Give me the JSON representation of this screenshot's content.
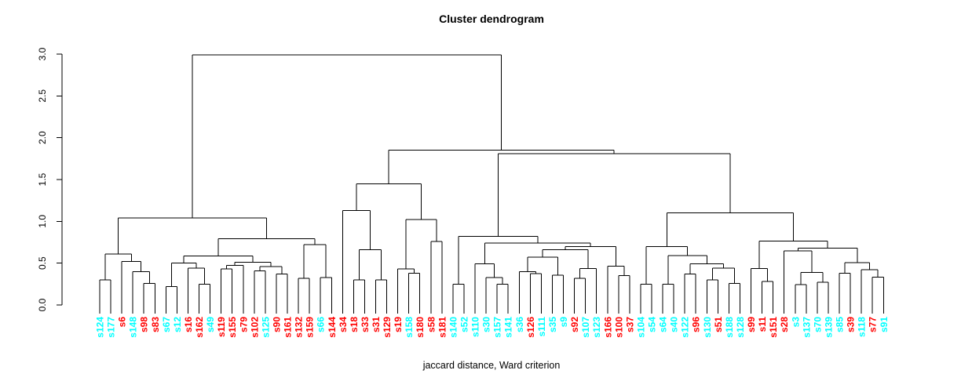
{
  "title": "Cluster dendrogram",
  "xlabel": "jaccard distance, Ward criterion",
  "chart_data": {
    "type": "dendrogram",
    "title": "Cluster dendrogram",
    "xlabel": "jaccard distance, Ward criterion",
    "ylabel": "",
    "ylim": [
      0.0,
      3.0
    ],
    "ytick_labels": [
      "0.0",
      "0.5",
      "1.0",
      "1.5",
      "2.0",
      "2.5",
      "3.0"
    ],
    "yticks": [
      0.0,
      0.5,
      1.0,
      1.5,
      2.0,
      2.5,
      3.0
    ],
    "grid": false,
    "line_color": "#000000",
    "label_colors": {
      "red": "#ff0000",
      "cyan": "#00ffff"
    },
    "leaves": [
      {
        "label": "s124",
        "color": "cyan"
      },
      {
        "label": "s177",
        "color": "cyan"
      },
      {
        "label": "s6",
        "color": "red"
      },
      {
        "label": "s148",
        "color": "cyan"
      },
      {
        "label": "s98",
        "color": "red"
      },
      {
        "label": "s83",
        "color": "red"
      },
      {
        "label": "s67",
        "color": "cyan"
      },
      {
        "label": "s12",
        "color": "cyan"
      },
      {
        "label": "s16",
        "color": "red"
      },
      {
        "label": "s162",
        "color": "red"
      },
      {
        "label": "s49",
        "color": "cyan"
      },
      {
        "label": "s119",
        "color": "red"
      },
      {
        "label": "s155",
        "color": "red"
      },
      {
        "label": "s79",
        "color": "red"
      },
      {
        "label": "s102",
        "color": "red"
      },
      {
        "label": "s125",
        "color": "cyan"
      },
      {
        "label": "s90",
        "color": "red"
      },
      {
        "label": "s161",
        "color": "red"
      },
      {
        "label": "s132",
        "color": "red"
      },
      {
        "label": "s159",
        "color": "red"
      },
      {
        "label": "s66",
        "color": "cyan"
      },
      {
        "label": "s144",
        "color": "red"
      },
      {
        "label": "s34",
        "color": "red"
      },
      {
        "label": "s18",
        "color": "red"
      },
      {
        "label": "s33",
        "color": "red"
      },
      {
        "label": "s31",
        "color": "red"
      },
      {
        "label": "s129",
        "color": "red"
      },
      {
        "label": "s19",
        "color": "red"
      },
      {
        "label": "s158",
        "color": "cyan"
      },
      {
        "label": "s180",
        "color": "red"
      },
      {
        "label": "s58",
        "color": "red"
      },
      {
        "label": "s181",
        "color": "red"
      },
      {
        "label": "s140",
        "color": "cyan"
      },
      {
        "label": "s52",
        "color": "cyan"
      },
      {
        "label": "s110",
        "color": "cyan"
      },
      {
        "label": "s30",
        "color": "cyan"
      },
      {
        "label": "s157",
        "color": "cyan"
      },
      {
        "label": "s141",
        "color": "cyan"
      },
      {
        "label": "s36",
        "color": "cyan"
      },
      {
        "label": "s126",
        "color": "red"
      },
      {
        "label": "s111",
        "color": "cyan"
      },
      {
        "label": "s35",
        "color": "cyan"
      },
      {
        "label": "s9",
        "color": "cyan"
      },
      {
        "label": "s92",
        "color": "red"
      },
      {
        "label": "s107",
        "color": "cyan"
      },
      {
        "label": "s123",
        "color": "cyan"
      },
      {
        "label": "s166",
        "color": "red"
      },
      {
        "label": "s100",
        "color": "red"
      },
      {
        "label": "s37",
        "color": "red"
      },
      {
        "label": "s104",
        "color": "cyan"
      },
      {
        "label": "s54",
        "color": "cyan"
      },
      {
        "label": "s64",
        "color": "cyan"
      },
      {
        "label": "s40",
        "color": "cyan"
      },
      {
        "label": "s122",
        "color": "cyan"
      },
      {
        "label": "s96",
        "color": "red"
      },
      {
        "label": "s130",
        "color": "cyan"
      },
      {
        "label": "s51",
        "color": "red"
      },
      {
        "label": "s188",
        "color": "cyan"
      },
      {
        "label": "s128",
        "color": "cyan"
      },
      {
        "label": "s99",
        "color": "red"
      },
      {
        "label": "s11",
        "color": "red"
      },
      {
        "label": "s151",
        "color": "red"
      },
      {
        "label": "s28",
        "color": "red"
      },
      {
        "label": "s3",
        "color": "cyan"
      },
      {
        "label": "s137",
        "color": "cyan"
      },
      {
        "label": "s70",
        "color": "cyan"
      },
      {
        "label": "s139",
        "color": "cyan"
      },
      {
        "label": "s85",
        "color": "cyan"
      },
      {
        "label": "s39",
        "color": "red"
      },
      {
        "label": "s118",
        "color": "cyan"
      },
      {
        "label": "s77",
        "color": "red"
      },
      {
        "label": "s91",
        "color": "cyan"
      }
    ],
    "tree": {
      "h": 2.99,
      "c": [
        {
          "h": 1.04,
          "c": [
            {
              "h": 0.61,
              "c": [
                {
                  "h": 0.3,
                  "c": [
                    0,
                    1
                  ]
                },
                {
                  "h": 0.52,
                  "c": [
                    2,
                    {
                      "h": 0.4,
                      "c": [
                        3,
                        {
                          "h": 0.26,
                          "c": [
                            4,
                            5
                          ]
                        }
                      ]
                    }
                  ]
                }
              ]
            },
            {
              "h": 0.79,
              "c": [
                {
                  "h": 0.585,
                  "c": [
                    {
                      "h": 0.5,
                      "c": [
                        {
                          "h": 0.22,
                          "c": [
                            6,
                            7
                          ]
                        },
                        {
                          "h": 0.44,
                          "c": [
                            8,
                            {
                              "h": 0.25,
                              "c": [
                                9,
                                10
                              ]
                            }
                          ]
                        }
                      ]
                    },
                    {
                      "h": 0.51,
                      "c": [
                        {
                          "h": 0.475,
                          "c": [
                            {
                              "h": 0.43,
                              "c": [
                                11,
                                12
                              ]
                            },
                            13
                          ]
                        },
                        {
                          "h": 0.46,
                          "c": [
                            {
                              "h": 0.41,
                              "c": [
                                14,
                                15
                              ]
                            },
                            {
                              "h": 0.37,
                              "c": [
                                16,
                                17
                              ]
                            }
                          ]
                        }
                      ]
                    }
                  ]
                },
                {
                  "h": 0.72,
                  "c": [
                    {
                      "h": 0.32,
                      "c": [
                        18,
                        19
                      ]
                    },
                    {
                      "h": 0.33,
                      "c": [
                        20,
                        21
                      ]
                    }
                  ]
                }
              ]
            }
          ]
        },
        {
          "h": 1.85,
          "c": [
            {
              "h": 1.45,
              "c": [
                {
                  "h": 1.13,
                  "c": [
                    22,
                    {
                      "h": 0.66,
                      "c": [
                        {
                          "h": 0.3,
                          "c": [
                            23,
                            24
                          ]
                        },
                        {
                          "h": 0.3,
                          "c": [
                            25,
                            26
                          ]
                        }
                      ]
                    }
                  ]
                },
                {
                  "h": 1.02,
                  "c": [
                    {
                      "h": 0.43,
                      "c": [
                        27,
                        {
                          "h": 0.38,
                          "c": [
                            28,
                            29
                          ]
                        }
                      ]
                    },
                    {
                      "h": 0.76,
                      "c": [
                        30,
                        31
                      ]
                    }
                  ]
                }
              ]
            },
            {
              "h": 1.81,
              "c": [
                {
                  "h": 0.82,
                  "c": [
                    {
                      "h": 0.25,
                      "c": [
                        32,
                        33
                      ]
                    },
                    {
                      "h": 0.74,
                      "c": [
                        {
                          "h": 0.49,
                          "c": [
                            34,
                            {
                              "h": 0.33,
                              "c": [
                                35,
                                {
                                  "h": 0.25,
                                  "c": [
                                    36,
                                    37
                                  ]
                                }
                              ]
                            }
                          ]
                        },
                        {
                          "h": 0.7,
                          "c": [
                            {
                              "h": 0.66,
                              "c": [
                                {
                                  "h": 0.57,
                                  "c": [
                                    {
                                      "h": 0.4,
                                      "c": [
                                        38,
                                        {
                                          "h": 0.375,
                                          "c": [
                                            39,
                                            40
                                          ]
                                        }
                                      ]
                                    },
                                    {
                                      "h": 0.355,
                                      "c": [
                                        41,
                                        42
                                      ]
                                    }
                                  ]
                                },
                                {
                                  "h": 0.435,
                                  "c": [
                                    {
                                      "h": 0.32,
                                      "c": [
                                        43,
                                        44
                                      ]
                                    },
                                    45
                                  ]
                                }
                              ]
                            },
                            {
                              "h": 0.465,
                              "c": [
                                46,
                                {
                                  "h": 0.35,
                                  "c": [
                                    47,
                                    48
                                  ]
                                }
                              ]
                            }
                          ]
                        }
                      ]
                    }
                  ]
                },
                {
                  "h": 1.1,
                  "c": [
                    {
                      "h": 0.7,
                      "c": [
                        {
                          "h": 0.25,
                          "c": [
                            49,
                            50
                          ]
                        },
                        {
                          "h": 0.59,
                          "c": [
                            {
                              "h": 0.25,
                              "c": [
                                51,
                                52
                              ]
                            },
                            {
                              "h": 0.49,
                              "c": [
                                {
                                  "h": 0.37,
                                  "c": [
                                    53,
                                    54
                                  ]
                                },
                                {
                                  "h": 0.44,
                                  "c": [
                                    {
                                      "h": 0.3,
                                      "c": [
                                        55,
                                        56
                                      ]
                                    },
                                    {
                                      "h": 0.26,
                                      "c": [
                                        57,
                                        58
                                      ]
                                    }
                                  ]
                                }
                              ]
                            }
                          ]
                        }
                      ]
                    },
                    {
                      "h": 0.765,
                      "c": [
                        {
                          "h": 0.435,
                          "c": [
                            59,
                            {
                              "h": 0.28,
                              "c": [
                                60,
                                61
                              ]
                            }
                          ]
                        },
                        {
                          "h": 0.68,
                          "c": [
                            {
                              "h": 0.645,
                              "c": [
                                62,
                                {
                                  "h": 0.39,
                                  "c": [
                                    {
                                      "h": 0.245,
                                      "c": [
                                        63,
                                        64
                                      ]
                                    },
                                    {
                                      "h": 0.27,
                                      "c": [
                                        65,
                                        66
                                      ]
                                    }
                                  ]
                                }
                              ]
                            },
                            {
                              "h": 0.505,
                              "c": [
                                {
                                  "h": 0.38,
                                  "c": [
                                    67,
                                    68
                                  ]
                                },
                                {
                                  "h": 0.42,
                                  "c": [
                                    69,
                                    {
                                      "h": 0.335,
                                      "c": [
                                        70,
                                        71
                                      ]
                                    }
                                  ]
                                }
                              ]
                            }
                          ]
                        }
                      ]
                    }
                  ]
                }
              ]
            }
          ]
        }
      ]
    }
  }
}
